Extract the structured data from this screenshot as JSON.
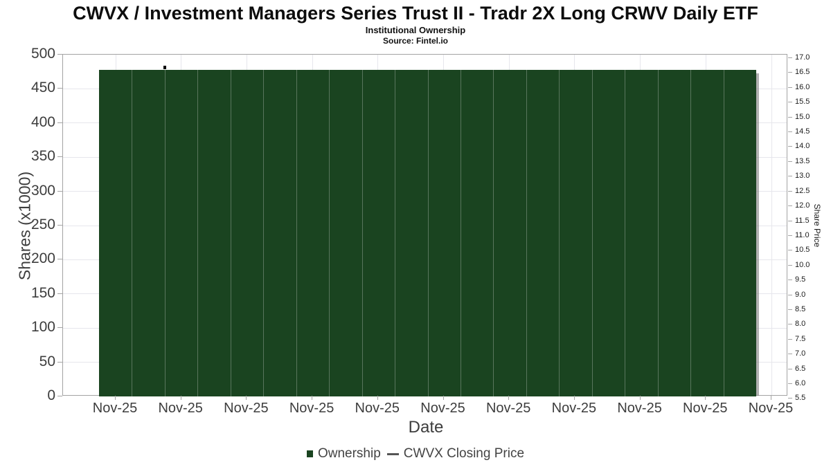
{
  "title": "CWVX / Investment Managers Series Trust II - Tradr 2X Long CRWV Daily ETF",
  "subtitle": "Institutional Ownership",
  "source": "Source: Fintel.io",
  "colors": {
    "bar": "#1a4420",
    "bar_separator": "rgba(185,195,185,0.40)",
    "shadow": "rgba(125,125,125,0.60)",
    "grid": "#e6e6ec",
    "axis_border": "#a3a3a3",
    "tick_text": "#3d3d3d",
    "price_marker": "#000000",
    "legend_line": "#555555"
  },
  "chart_data": {
    "type": "bar",
    "title": "CWVX / Investment Managers Series Trust II - Tradr 2X Long CRWV Daily ETF",
    "subtitle": "Institutional Ownership",
    "source": "Source: Fintel.io",
    "grid": true,
    "x_axis": {
      "label": "Date",
      "tick_labels": [
        "Nov-25",
        "Nov-25",
        "Nov-25",
        "Nov-25",
        "Nov-25",
        "Nov-25",
        "Nov-25",
        "Nov-25",
        "Nov-25",
        "Nov-25",
        "Nov-25"
      ]
    },
    "left_axis": {
      "label": "Shares (x1000)",
      "range": [
        0,
        500
      ],
      "ticks_top_to_bottom": [
        "500",
        "450",
        "400",
        "350",
        "300",
        "250",
        "200",
        "150",
        "100",
        "50",
        "0"
      ]
    },
    "right_axis": {
      "label": "Share Price",
      "range": [
        5.5,
        17.0
      ],
      "ticks_top_to_bottom": [
        "17.0",
        "16.5",
        "16.0",
        "15.5",
        "15.0",
        "14.5",
        "14.0",
        "13.5",
        "13.0",
        "12.5",
        "12.0",
        "11.5",
        "11.0",
        "10.5",
        "10.0",
        "9.5",
        "9.0",
        "8.5",
        "8.0",
        "7.5",
        "7.0",
        "6.5",
        "6.0",
        "5.5"
      ]
    },
    "series": [
      {
        "name": "Ownership",
        "type": "bar",
        "color": "#1a4420",
        "unit": "shares x1000",
        "bar_count": 20,
        "values": [
          478,
          478,
          478,
          478,
          478,
          478,
          478,
          478,
          478,
          478,
          478,
          478,
          478,
          478,
          478,
          478,
          478,
          478,
          478,
          478
        ]
      },
      {
        "name": "CWVX Closing Price",
        "type": "line",
        "color": "#000000",
        "points": [
          {
            "date": "Nov-25",
            "price": 16.7,
            "x_bar_index": 2
          }
        ]
      }
    ],
    "legend": {
      "position": "bottom",
      "items": [
        "Ownership",
        "CWVX Closing Price"
      ]
    }
  },
  "legend": {
    "ownership_label": "Ownership",
    "price_label": "CWVX Closing Price"
  }
}
